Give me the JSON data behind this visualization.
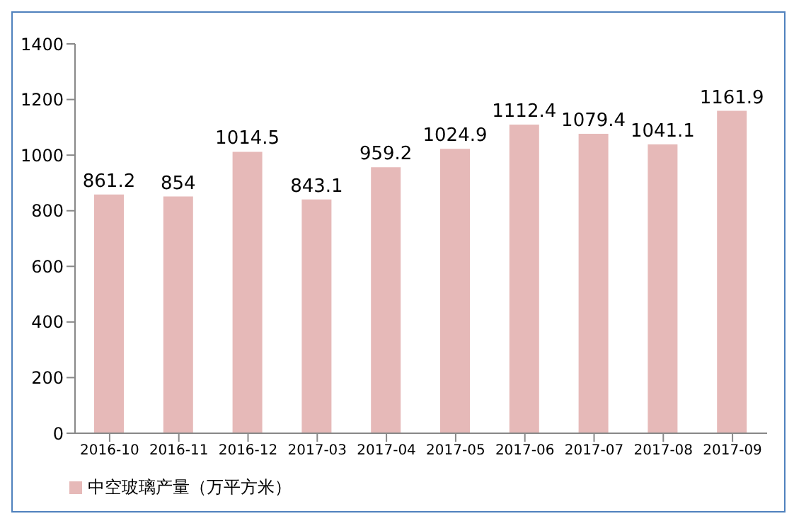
{
  "chart_data": {
    "type": "bar",
    "categories": [
      "2016-10",
      "2016-11",
      "2016-12",
      "2017-03",
      "2017-04",
      "2017-05",
      "2017-06",
      "2017-07",
      "2017-08",
      "2017-09"
    ],
    "series": [
      {
        "name": "中空玻璃产量（万平方米）",
        "color": "#e6b9b8",
        "values": [
          861.2,
          854,
          1014.5,
          843.1,
          959.2,
          1024.9,
          1112.4,
          1079.4,
          1041.1,
          1161.9
        ]
      }
    ],
    "ylim": [
      0,
      1400
    ],
    "yticks": [
      0,
      200,
      400,
      600,
      800,
      1000,
      1200,
      1400
    ],
    "data_labels": true,
    "grid": false,
    "legend": "bottom left"
  }
}
